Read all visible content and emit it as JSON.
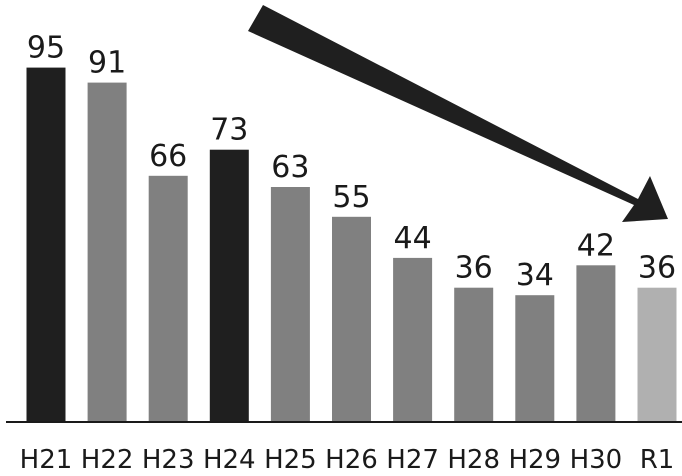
{
  "chart_data": {
    "type": "bar",
    "title": "",
    "xlabel": "",
    "ylabel": "",
    "categories": [
      "H21",
      "H22",
      "H23",
      "H24",
      "H25",
      "H26",
      "H27",
      "H28",
      "H29",
      "H30",
      "R1"
    ],
    "values": [
      95,
      91,
      66,
      73,
      63,
      55,
      44,
      36,
      34,
      42,
      36
    ],
    "bar_colors": [
      "#1f1f1f",
      "#808080",
      "#808080",
      "#1f1f1f",
      "#808080",
      "#808080",
      "#808080",
      "#808080",
      "#808080",
      "#808080",
      "#b0b0b0"
    ],
    "ylim": [
      0,
      100
    ],
    "grid": false,
    "legend": "none",
    "annotations": [
      {
        "type": "arrow",
        "direction": "down-right",
        "color": "#1f1f1f"
      }
    ]
  }
}
